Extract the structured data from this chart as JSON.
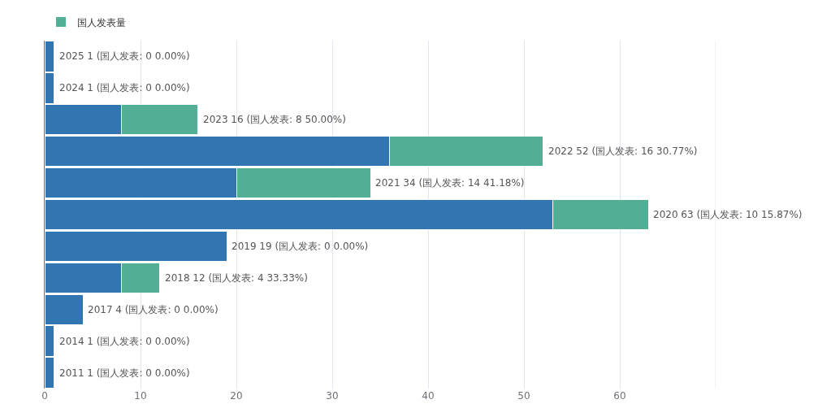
{
  "chart_data": {
    "type": "bar",
    "orientation": "horizontal",
    "stacked": true,
    "categories": [
      null,
      null,
      null,
      null,
      null,
      null,
      null,
      null,
      null,
      null,
      null
    ],
    "series": [
      {
        "color": "#3276b1",
        "values": [
          1,
          1,
          8,
          36,
          20,
          53,
          19,
          8,
          4,
          1,
          1
        ]
      },
      {
        "name": "国人发表量",
        "color": "#52ae94",
        "values": [
          0,
          0,
          8,
          16,
          14,
          10,
          0,
          4,
          0,
          0,
          0
        ]
      }
    ],
    "totals": [
      "2025 1 (国人发表: 0 0.00%)",
      "2024 1 (国人发表: 0 0.00%)",
      "2023 16 (国人发表: 8 50.00%)",
      "2022 52 (国人发表: 16 30.77%)",
      "2021 34 (国人发表: 14 41.18%)",
      "2020 63 (国人发表: 10 15.87%)",
      "2019 19 (国人发表: 0 0.00%)",
      "2018 12 (国人发表: 4 33.33%)",
      "2017 4 (国人发表: 0 0.00%)",
      "2014 1 (国人发表: 0 0.00%)",
      "2011 1 (国人发表: 0 0.00%)"
    ],
    "xlim": [
      0,
      70
    ],
    "xticks": [
      0,
      10,
      20,
      30,
      40,
      50,
      60,
      {
        "value": 70,
        "label": null
      }
    ],
    "grid": "x",
    "legend": "top left"
  }
}
